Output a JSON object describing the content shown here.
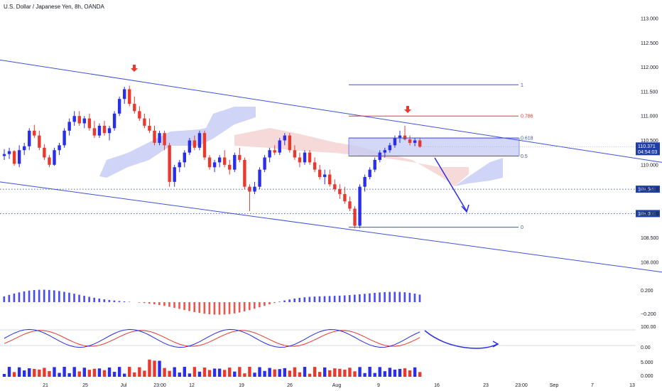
{
  "header": {
    "title": "U.S. Dollar / Japanese Yen, 8h, OANDA"
  },
  "colors": {
    "up": "#2a2ee8",
    "down": "#e8392f",
    "line": "#3f51d9",
    "fib_red": "#e8392f",
    "cloud_blue": "#c8cdf5",
    "cloud_red": "#f5d4d4",
    "box": "#c5cbf5",
    "tag_bg": "#1f3ea8",
    "rsi_line": "#2a2ee8",
    "rsi_signal": "#e8392f"
  },
  "chart_data": {
    "type": "candlestick",
    "symbol": "U.S. Dollar / Japanese Yen, 8h, OANDA",
    "price_axis": {
      "ylim": [
        107.8,
        113.2
      ],
      "ticks": [
        "113.000",
        "112.500",
        "112.000",
        "111.500",
        "111.000",
        "110.500",
        "110.000",
        "109.500",
        "109.000",
        "108.500",
        "108.000"
      ]
    },
    "time_axis": {
      "ticks": [
        "21",
        "25",
        "Jul",
        "23:00",
        "12",
        "19",
        "26",
        "Aug",
        "9",
        "16",
        "23",
        "23:00",
        "Sep",
        "7",
        "13"
      ]
    },
    "candles": [
      [
        110.18,
        110.32,
        110.1,
        110.22
      ],
      [
        110.22,
        110.35,
        110.12,
        110.28
      ],
      [
        110.28,
        110.3,
        109.98,
        110.02
      ],
      [
        110.02,
        110.4,
        109.95,
        110.3
      ],
      [
        110.3,
        110.45,
        110.2,
        110.38
      ],
      [
        110.38,
        110.75,
        110.3,
        110.7
      ],
      [
        110.7,
        110.82,
        110.55,
        110.6
      ],
      [
        110.6,
        110.7,
        110.3,
        110.35
      ],
      [
        110.35,
        110.42,
        110.1,
        110.15
      ],
      [
        110.15,
        110.2,
        109.95,
        110.0
      ],
      [
        110.0,
        110.35,
        109.98,
        110.3
      ],
      [
        110.3,
        110.45,
        110.2,
        110.4
      ],
      [
        110.4,
        110.75,
        110.35,
        110.7
      ],
      [
        110.7,
        110.95,
        110.6,
        110.88
      ],
      [
        110.88,
        111.1,
        110.8,
        111.0
      ],
      [
        111.0,
        111.1,
        110.8,
        110.85
      ],
      [
        110.85,
        111.0,
        110.75,
        110.95
      ],
      [
        110.95,
        111.05,
        110.7,
        110.75
      ],
      [
        110.75,
        110.9,
        110.55,
        110.6
      ],
      [
        110.6,
        110.85,
        110.55,
        110.8
      ],
      [
        110.8,
        110.9,
        110.6,
        110.65
      ],
      [
        110.65,
        110.8,
        110.5,
        110.75
      ],
      [
        110.75,
        111.1,
        110.7,
        111.05
      ],
      [
        111.05,
        111.4,
        111.0,
        111.35
      ],
      [
        111.35,
        111.6,
        111.25,
        111.55
      ],
      [
        111.55,
        111.62,
        111.2,
        111.25
      ],
      [
        111.25,
        111.4,
        111.05,
        111.1
      ],
      [
        111.1,
        111.2,
        110.9,
        110.95
      ],
      [
        110.95,
        111.05,
        110.75,
        110.8
      ],
      [
        110.8,
        110.95,
        110.65,
        110.7
      ],
      [
        110.7,
        110.8,
        110.4,
        110.45
      ],
      [
        110.45,
        110.7,
        110.4,
        110.65
      ],
      [
        110.65,
        110.7,
        110.3,
        110.4
      ],
      [
        110.4,
        110.45,
        109.55,
        109.65
      ],
      [
        109.65,
        110.0,
        109.55,
        109.95
      ],
      [
        109.95,
        110.1,
        109.85,
        110.05
      ],
      [
        110.05,
        110.3,
        109.95,
        110.25
      ],
      [
        110.25,
        110.55,
        110.2,
        110.5
      ],
      [
        110.5,
        110.6,
        110.3,
        110.35
      ],
      [
        110.35,
        110.7,
        110.3,
        110.65
      ],
      [
        110.65,
        110.7,
        110.1,
        110.15
      ],
      [
        110.15,
        110.2,
        109.9,
        109.95
      ],
      [
        109.95,
        110.1,
        109.85,
        110.05
      ],
      [
        110.05,
        110.2,
        109.95,
        110.15
      ],
      [
        110.15,
        110.3,
        109.95,
        110.0
      ],
      [
        110.0,
        110.1,
        109.8,
        109.9
      ],
      [
        109.9,
        110.25,
        109.85,
        110.2
      ],
      [
        110.2,
        110.35,
        110.05,
        110.1
      ],
      [
        110.1,
        110.15,
        109.5,
        109.55
      ],
      [
        109.55,
        109.6,
        109.05,
        109.45
      ],
      [
        109.45,
        109.65,
        109.4,
        109.55
      ],
      [
        109.55,
        109.95,
        109.5,
        109.9
      ],
      [
        109.9,
        110.2,
        109.85,
        110.15
      ],
      [
        110.15,
        110.35,
        110.05,
        110.3
      ],
      [
        110.3,
        110.4,
        110.2,
        110.25
      ],
      [
        110.25,
        110.55,
        110.2,
        110.5
      ],
      [
        110.5,
        110.65,
        110.4,
        110.6
      ],
      [
        110.6,
        110.65,
        110.25,
        110.3
      ],
      [
        110.3,
        110.4,
        110.1,
        110.15
      ],
      [
        110.15,
        110.25,
        109.95,
        110.05
      ],
      [
        110.05,
        110.3,
        110.0,
        110.25
      ],
      [
        110.25,
        110.3,
        110.0,
        110.05
      ],
      [
        110.05,
        110.15,
        109.85,
        109.9
      ],
      [
        109.9,
        110.0,
        109.7,
        109.75
      ],
      [
        109.75,
        109.9,
        109.6,
        109.8
      ],
      [
        109.8,
        109.9,
        109.55,
        109.6
      ],
      [
        109.6,
        109.7,
        109.45,
        109.5
      ],
      [
        109.5,
        109.6,
        109.3,
        109.4
      ],
      [
        109.4,
        109.55,
        109.2,
        109.25
      ],
      [
        109.25,
        109.35,
        109.05,
        109.1
      ],
      [
        109.1,
        109.15,
        108.7,
        108.75
      ],
      [
        108.75,
        109.6,
        108.7,
        109.55
      ],
      [
        109.55,
        109.8,
        109.45,
        109.75
      ],
      [
        109.75,
        109.95,
        109.7,
        109.9
      ],
      [
        109.9,
        110.15,
        109.85,
        110.1
      ],
      [
        110.1,
        110.3,
        110.05,
        110.25
      ],
      [
        110.25,
        110.35,
        110.15,
        110.3
      ],
      [
        110.3,
        110.45,
        110.25,
        110.4
      ],
      [
        110.4,
        110.6,
        110.35,
        110.55
      ],
      [
        110.55,
        110.7,
        110.45,
        110.6
      ],
      [
        110.6,
        110.8,
        110.5,
        110.52
      ],
      [
        110.52,
        110.6,
        110.4,
        110.45
      ],
      [
        110.45,
        110.55,
        110.38,
        110.5
      ],
      [
        110.5,
        110.55,
        110.35,
        110.37
      ]
    ],
    "channel_upper": {
      "start": [
        "jun-start",
        112.15
      ],
      "end": [
        "sep-end",
        110.05
      ]
    },
    "channel_lower": {
      "start": [
        "jun-start",
        109.65
      ],
      "end": [
        "sep-end",
        107.8
      ]
    },
    "fibonacci": [
      {
        "level": "1",
        "price": 111.64
      },
      {
        "level": "0.786",
        "price": 111.0
      },
      {
        "level": "0.618",
        "price": 110.55
      },
      {
        "level": "0.5",
        "price": 110.18
      },
      {
        "level": "0",
        "price": 108.72
      }
    ],
    "horizontal_levels": [
      {
        "label": "109.500",
        "price": 109.5
      },
      {
        "label": "109.000",
        "price": 109.0
      }
    ],
    "last_price": {
      "label": "110.371",
      "countdown": "04:54:03"
    },
    "annotations": [
      "down-arrow-jul-high",
      "down-arrow-aug-high",
      "projection-arrow-down"
    ],
    "macd": {
      "ticks": [
        "0.200",
        "−0.200"
      ]
    },
    "rsi": {
      "ticks": [
        "100.00",
        "0.00"
      ]
    },
    "volume": {
      "ticks": [
        "5.000",
        "0.000"
      ]
    }
  }
}
